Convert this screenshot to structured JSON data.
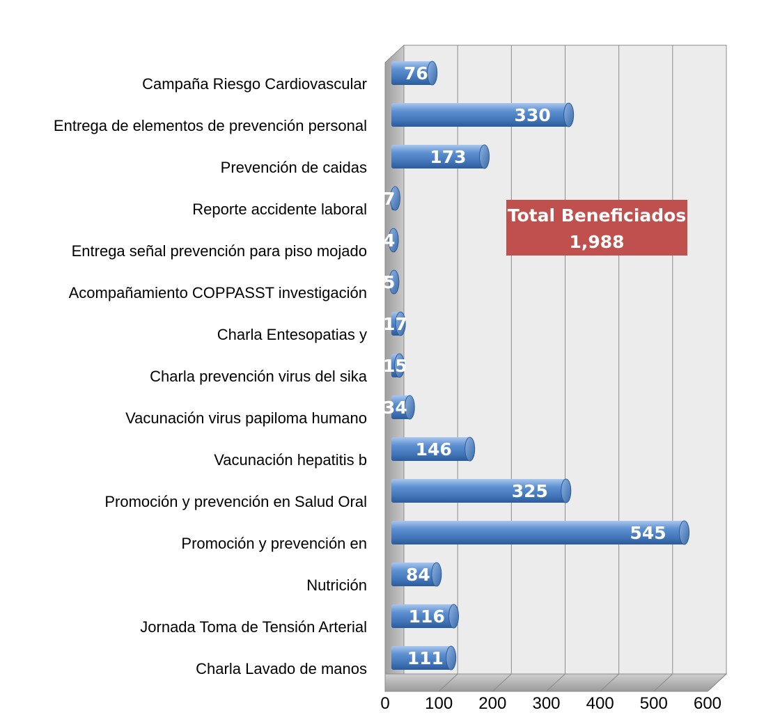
{
  "chart_data": {
    "type": "bar",
    "orientation": "horizontal",
    "title": "",
    "xlabel": "",
    "ylabel": "",
    "xlim": [
      0,
      600
    ],
    "x_ticks": [
      "0",
      "100",
      "200",
      "300",
      "400",
      "500",
      "600"
    ],
    "grid": true,
    "legend": "none",
    "categories": [
      "Campaña Riesgo Cardiovascular",
      "Entrega de elementos de prevención personal",
      "Prevención de caidas",
      "Reporte accidente laboral",
      "Entrega señal prevención para piso mojado",
      "Acompañamiento COPPASST investigación",
      "Charla Entesopatias y",
      "Charla prevención virus del sika",
      "Vacunación virus papiloma humano",
      "Vacunación hepatitis b",
      "Promoción y prevención en Salud Oral",
      "Promoción y prevención en",
      "Nutrición",
      "Jornada Toma de Tensión Arterial",
      "Charla Lavado de manos"
    ],
    "values": [
      76,
      330,
      173,
      7,
      4,
      5,
      17,
      15,
      34,
      146,
      325,
      545,
      84,
      116,
      111
    ],
    "value_labels": [
      "76",
      "330",
      "173",
      "7",
      "4",
      "5",
      "17",
      "15",
      "34",
      "146",
      "325",
      "545",
      "84",
      "116",
      "111"
    ],
    "bar_color": "#4f81bd",
    "annotation": {
      "line1": "Total Beneficiados",
      "line2": "1,988",
      "color": "#c0504d"
    }
  }
}
